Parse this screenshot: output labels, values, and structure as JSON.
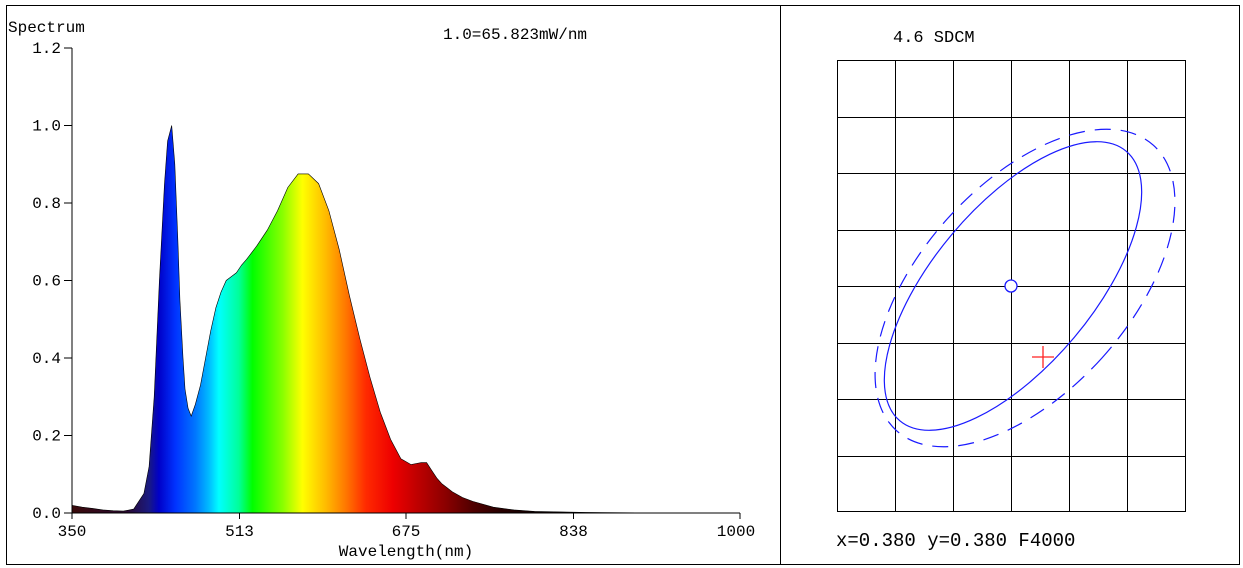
{
  "left_panel": {
    "title": "Spectrum",
    "scale_note": "1.0=65.823mW/nm"
  },
  "right_panel": {
    "title": "4.6 SDCM",
    "readout": "x=0.380 y=0.380 F4000"
  },
  "colors": {
    "ellipse": "#1a1aff",
    "measured_marker": "#ff2222",
    "target_marker": "#1a1aff"
  },
  "chart_data": [
    {
      "type": "area",
      "title": "Spectrum",
      "xlabel": "Wavelength(nm)",
      "ylabel": "",
      "xlim": [
        350,
        1000
      ],
      "ylim": [
        0,
        1.2
      ],
      "x_ticks": [
        "350",
        "513",
        "675",
        "838",
        "1000"
      ],
      "y_ticks": [
        "0.0",
        "0.2",
        "0.4",
        "0.6",
        "0.8",
        "1.0",
        "1.2"
      ],
      "fill": "visible-spectrum gradient",
      "x": [
        350,
        360,
        370,
        380,
        390,
        400,
        410,
        420,
        425,
        430,
        435,
        440,
        443,
        447,
        450,
        453,
        455,
        458,
        460,
        463,
        466,
        470,
        475,
        480,
        485,
        490,
        495,
        500,
        505,
        510,
        515,
        520,
        530,
        540,
        550,
        560,
        570,
        580,
        590,
        600,
        610,
        620,
        630,
        640,
        650,
        660,
        670,
        680,
        690,
        695,
        700,
        705,
        710,
        715,
        720,
        730,
        740,
        760,
        780,
        800,
        850,
        900,
        950,
        1000
      ],
      "y": [
        0.02,
        0.015,
        0.012,
        0.008,
        0.006,
        0.005,
        0.01,
        0.05,
        0.12,
        0.3,
        0.6,
        0.85,
        0.96,
        1.0,
        0.9,
        0.7,
        0.55,
        0.4,
        0.32,
        0.27,
        0.25,
        0.28,
        0.33,
        0.4,
        0.47,
        0.53,
        0.57,
        0.6,
        0.61,
        0.62,
        0.64,
        0.655,
        0.69,
        0.73,
        0.78,
        0.84,
        0.875,
        0.875,
        0.85,
        0.78,
        0.68,
        0.56,
        0.45,
        0.35,
        0.26,
        0.19,
        0.14,
        0.125,
        0.13,
        0.13,
        0.11,
        0.09,
        0.075,
        0.065,
        0.055,
        0.04,
        0.03,
        0.015,
        0.008,
        0.004,
        0.0015,
        0.0005,
        0.0002,
        0.0
      ],
      "grid": false
    },
    {
      "type": "scatter",
      "title": "4.6 SDCM",
      "xlabel": "",
      "ylabel": "",
      "grid": true,
      "series": [
        {
          "values": [
            [
              0.38,
              0.38
            ]
          ]
        }
      ],
      "readout": "x=0.380 y=0.380 F4000"
    }
  ]
}
